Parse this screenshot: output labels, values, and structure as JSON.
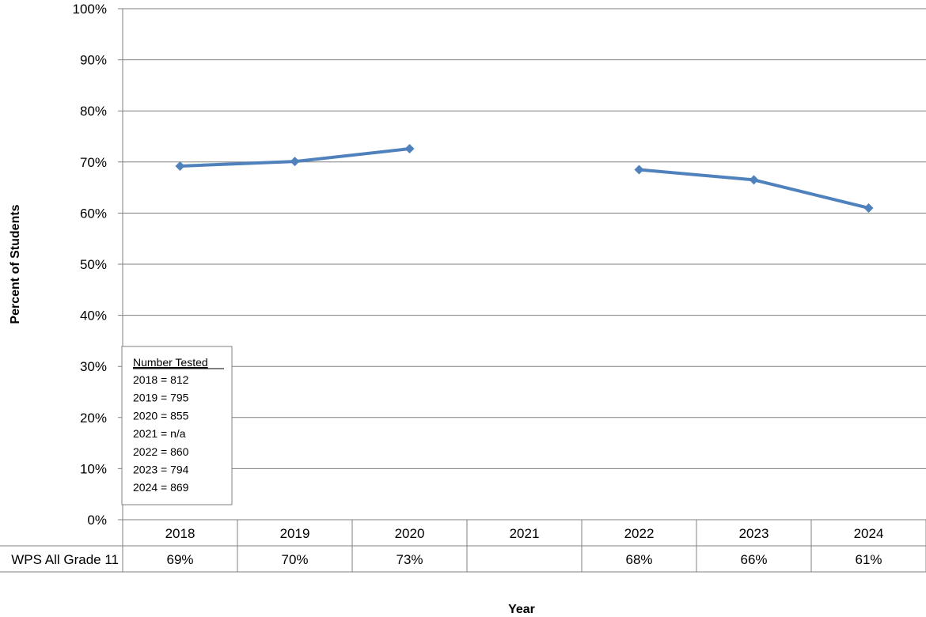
{
  "chart_data": {
    "type": "line",
    "categories": [
      "2018",
      "2019",
      "2020",
      "2021",
      "2022",
      "2023",
      "2024"
    ],
    "series": [
      {
        "name": "WPS All Grade 11",
        "values": [
          69.2,
          70.1,
          72.6,
          null,
          68.5,
          66.5,
          61.0
        ],
        "labels": [
          "69%",
          "70%",
          "73%",
          "",
          "68%",
          "66%",
          "61%"
        ],
        "color": "#4f81bd"
      }
    ],
    "xlabel": "Year",
    "ylabel": "Percent of Students",
    "ylim": [
      0,
      100
    ],
    "yticks": [
      "0%",
      "10%",
      "20%",
      "30%",
      "40%",
      "50%",
      "60%",
      "70%",
      "80%",
      "90%",
      "100%"
    ],
    "grid": true,
    "legend_position": "none",
    "data_table": true,
    "annotation": {
      "title": "Number Tested",
      "lines": [
        "2018 = 812",
        "2019 = 795",
        "2020 = 855",
        "2021 = n/a",
        "2022 = 860",
        "2023 = 794",
        "2024 = 869"
      ]
    }
  }
}
